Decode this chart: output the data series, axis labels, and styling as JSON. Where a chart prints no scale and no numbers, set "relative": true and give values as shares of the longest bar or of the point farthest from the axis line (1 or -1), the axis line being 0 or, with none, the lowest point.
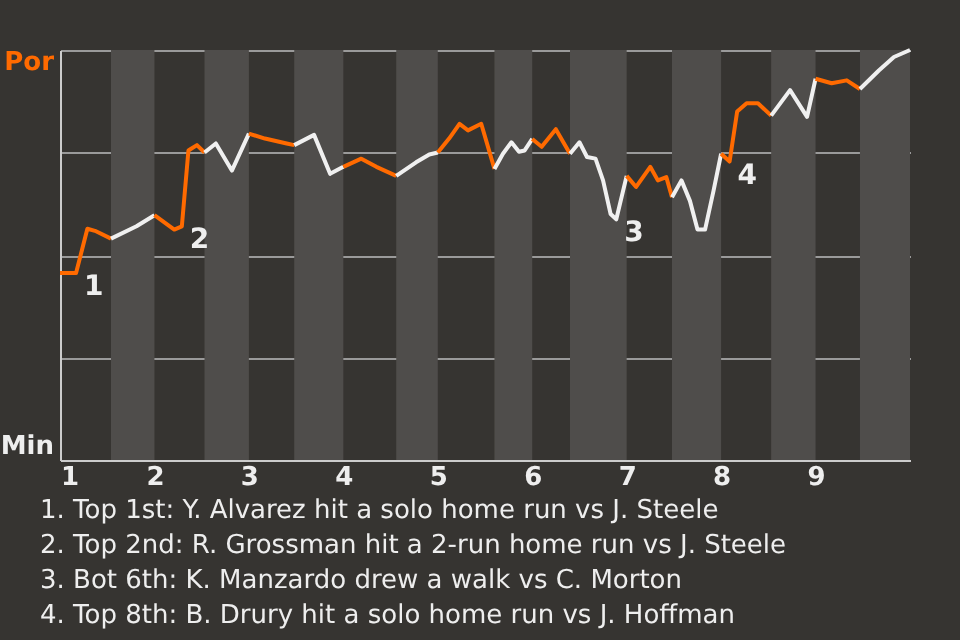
{
  "chart_data": {
    "type": "line",
    "relative": true,
    "series": [
      {
        "color": "#ff6a00",
        "x": [
          1,
          1.17,
          1.29,
          1.37,
          1.54
        ],
        "values": [
          0.456,
          0.456,
          0.564,
          0.559,
          0.54
        ]
      },
      {
        "color": "#f0f0f0",
        "x": [
          1.54,
          1.81,
          2
        ],
        "values": [
          0.54,
          0.57,
          0.597
        ]
      },
      {
        "color": "#ff6a00",
        "x": [
          2,
          2.21,
          2.29,
          2.36,
          2.38,
          2.45,
          2.53
        ],
        "values": [
          0.597,
          0.562,
          0.57,
          0.755,
          0.758,
          0.768,
          0.75
        ]
      },
      {
        "color": "#f0f0f0",
        "x": [
          2.53,
          2.65,
          2.82,
          3
        ],
        "values": [
          0.75,
          0.772,
          0.706,
          0.796
        ]
      },
      {
        "color": "#ff6a00",
        "x": [
          3,
          3.17,
          3.4,
          3.48
        ],
        "values": [
          0.796,
          0.784,
          0.772,
          0.768
        ]
      },
      {
        "color": "#f0f0f0",
        "x": [
          3.48,
          3.69,
          3.86,
          4
        ],
        "values": [
          0.768,
          0.793,
          0.698,
          0.715
        ]
      },
      {
        "color": "#ff6a00",
        "x": [
          4,
          4.19,
          4.35,
          4.56
        ],
        "values": [
          0.715,
          0.735,
          0.715,
          0.693
        ]
      },
      {
        "color": "#f0f0f0",
        "x": [
          4.56,
          4.77,
          4.91,
          5
        ],
        "values": [
          0.693,
          0.726,
          0.745,
          0.75
        ]
      },
      {
        "color": "#ff6a00",
        "x": [
          5,
          5.12,
          5.23,
          5.32,
          5.46,
          5.6
        ],
        "values": [
          0.75,
          0.784,
          0.82,
          0.804,
          0.82,
          0.71
        ]
      },
      {
        "color": "#f0f0f0",
        "x": [
          5.6,
          5.69,
          5.78,
          5.86,
          5.92,
          6
        ],
        "values": [
          0.71,
          0.747,
          0.775,
          0.752,
          0.755,
          0.783
        ]
      },
      {
        "color": "#ff6a00",
        "x": [
          6,
          6.1,
          6.25,
          6.4
        ],
        "values": [
          0.783,
          0.764,
          0.807,
          0.747
        ]
      },
      {
        "color": "#f0f0f0",
        "x": [
          6.4,
          6.5,
          6.58,
          6.67,
          6.75,
          6.83,
          6.89,
          7
        ],
        "values": [
          0.747,
          0.775,
          0.739,
          0.735,
          0.682,
          0.6,
          0.587,
          0.693
        ]
      },
      {
        "color": "#ff6a00",
        "x": [
          7,
          7.1,
          7.25,
          7.33,
          7.42,
          7.48
        ],
        "values": [
          0.693,
          0.666,
          0.715,
          0.682,
          0.69,
          0.641
        ]
      },
      {
        "color": "#f0f0f0",
        "x": [
          7.48,
          7.58,
          7.67,
          7.75,
          7.83,
          7.92,
          8
        ],
        "values": [
          0.641,
          0.682,
          0.632,
          0.562,
          0.562,
          0.657,
          0.747
        ]
      },
      {
        "color": "#ff6a00",
        "x": [
          8,
          8.09,
          8.17,
          8.27,
          8.39,
          8.53
        ],
        "values": [
          0.747,
          0.728,
          0.85,
          0.87,
          0.87,
          0.84
        ]
      },
      {
        "color": "#f0f0f0",
        "x": [
          8.53,
          8.73,
          8.91,
          9
        ],
        "values": [
          0.84,
          0.902,
          0.837,
          0.93
        ]
      },
      {
        "color": "#ff6a00",
        "x": [
          9,
          9.17,
          9.33,
          9.47
        ],
        "values": [
          0.93,
          0.919,
          0.926,
          0.905
        ]
      },
      {
        "color": "#f0f0f0",
        "x": [
          9.47,
          9.67,
          9.83,
          10
        ],
        "values": [
          0.905,
          0.95,
          0.983,
          1
        ]
      }
    ],
    "xlim": [
      1,
      10
    ],
    "xticks": [
      1,
      2,
      3,
      4,
      5,
      6,
      7,
      8,
      9
    ],
    "grid": "y",
    "line_style": "solid",
    "marker": "none",
    "bands": [
      {
        "axis": "x",
        "from": 1.54,
        "to": 2,
        "color": "#4f4d4b"
      },
      {
        "axis": "x",
        "from": 2.53,
        "to": 3,
        "color": "#4f4d4b"
      },
      {
        "axis": "x",
        "from": 3.48,
        "to": 4,
        "color": "#4f4d4b"
      },
      {
        "axis": "x",
        "from": 4.56,
        "to": 5,
        "color": "#4f4d4b"
      },
      {
        "axis": "x",
        "from": 5.6,
        "to": 6,
        "color": "#4f4d4b"
      },
      {
        "axis": "x",
        "from": 6.4,
        "to": 7,
        "color": "#4f4d4b"
      },
      {
        "axis": "x",
        "from": 7.48,
        "to": 8,
        "color": "#4f4d4b"
      },
      {
        "axis": "x",
        "from": 8.53,
        "to": 9,
        "color": "#4f4d4b"
      },
      {
        "axis": "x",
        "from": 9.47,
        "to": 10,
        "color": "#4f4d4b"
      }
    ],
    "annotations": [
      "Por",
      "Min",
      {
        "text": "1",
        "x": 1.17,
        "y": 0.456
      },
      {
        "text": "2",
        "x": 2.29,
        "y": 0.57
      },
      {
        "text": "3",
        "x": 6.89,
        "y": 0.587
      },
      {
        "text": "4",
        "x": 8.09,
        "y": 0.728
      },
      "1. Top 1st: Y. Alvarez hit a solo home run vs J. Steele",
      "2. Top 2nd: R. Grossman hit a 2-run home run vs J. Steele",
      "3. Bot 6th: K. Manzardo drew a walk vs C. Morton",
      "4. Top 8th: B. Drury hit a solo home run vs J. Hoffman"
    ]
  }
}
